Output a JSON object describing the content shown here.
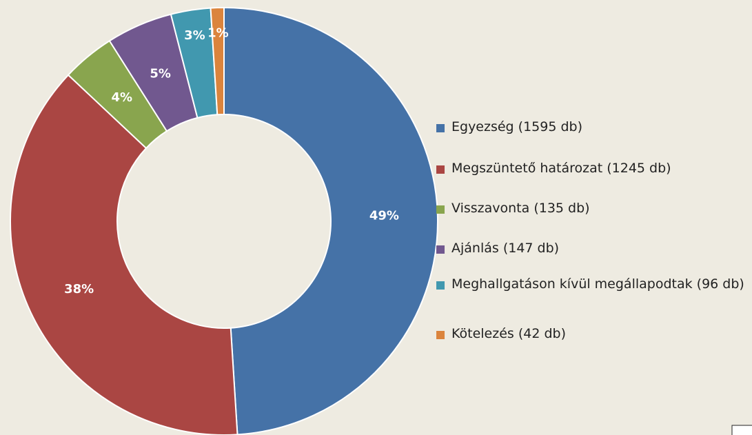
{
  "chart_data": {
    "type": "donut",
    "categories": [
      "Egyezség (1595 db)",
      "Megszüntető határozat (1245 db)",
      "Visszavonta (135 db)",
      "Ajánlás (147 db)",
      "Meghallgatáson kívül megállapodtak (96 db)",
      "Kötelezés (42 db)"
    ],
    "values": [
      49,
      38,
      4,
      5,
      3,
      1
    ],
    "value_labels": [
      "49%",
      "38%",
      "4%",
      "5%",
      "3%",
      "1%"
    ],
    "colors": [
      "#4572a7",
      "#aa4643",
      "#89a54e",
      "#71588f",
      "#4198af",
      "#db843d"
    ],
    "legend": "right"
  }
}
